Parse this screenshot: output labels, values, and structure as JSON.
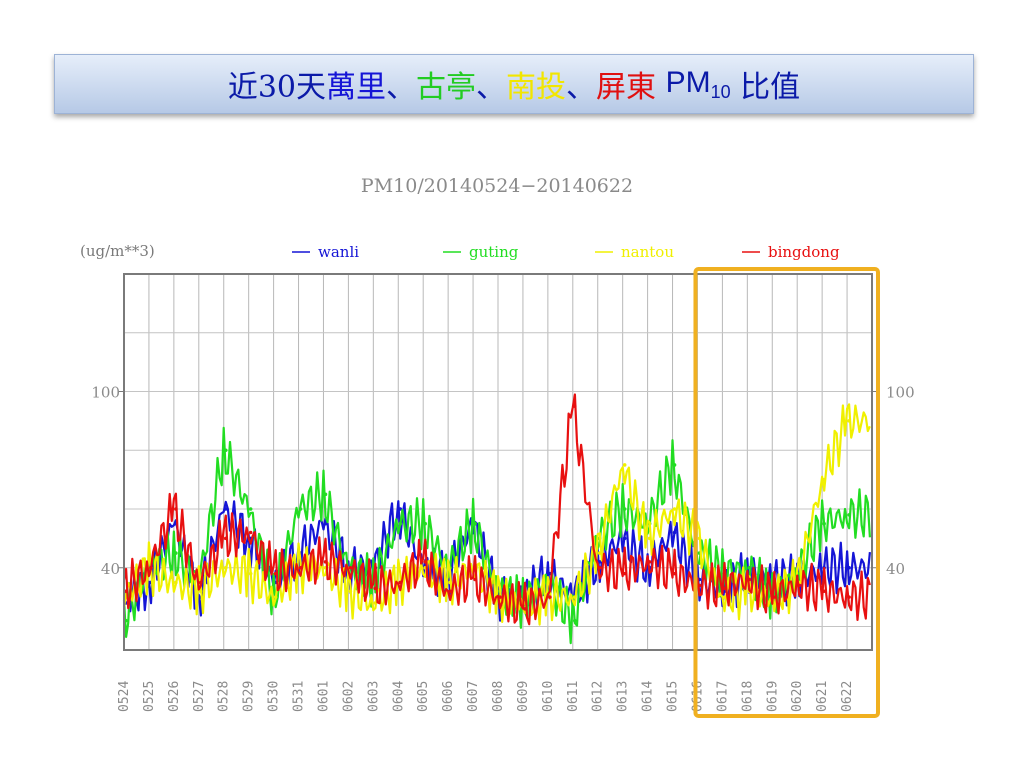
{
  "slide_title": {
    "prefix": "近30天",
    "sep1": "、",
    "sep2": "、",
    "sep3": "、",
    "station_names": [
      "萬里",
      "古亭",
      "南投",
      "屏東"
    ],
    "pm_label": "PM",
    "pm_sub": "10",
    "suffix": "比值"
  },
  "colors": {
    "wanli": "#1515d6",
    "guting": "#22dd22",
    "nantou": "#f0f000",
    "bingdong": "#e81010",
    "highlight_box": "#f0b020"
  },
  "chart_data": {
    "type": "line",
    "title": "PM10/20140524−20140622",
    "ylabel": "(ug/m**3)",
    "ylim": [
      12,
      140
    ],
    "yticks": [
      40,
      100
    ],
    "grid": true,
    "legend": "top",
    "categories": [
      "0524",
      "0525",
      "0526",
      "0527",
      "0528",
      "0529",
      "0530",
      "0531",
      "0601",
      "0602",
      "0603",
      "0604",
      "0605",
      "0606",
      "0607",
      "0608",
      "0609",
      "0610",
      "0611",
      "0612",
      "0613",
      "0614",
      "0615",
      "0616",
      "0617",
      "0618",
      "0619",
      "0620",
      "0621",
      "0622"
    ],
    "highlight_range": [
      "0616",
      "0622"
    ],
    "series": [
      {
        "name": "wanli",
        "key": "wanli",
        "values": [
          28,
          35,
          55,
          30,
          60,
          50,
          35,
          45,
          55,
          40,
          40,
          60,
          40,
          38,
          55,
          30,
          30,
          38,
          30,
          42,
          50,
          40,
          52,
          36,
          32,
          38,
          36,
          36,
          40,
          40
        ]
      },
      {
        "name": "guting",
        "key": "guting",
        "values": [
          22,
          40,
          45,
          35,
          80,
          60,
          30,
          60,
          65,
          40,
          35,
          55,
          55,
          40,
          55,
          32,
          28,
          35,
          22,
          50,
          60,
          55,
          75,
          45,
          38,
          40,
          30,
          38,
          55,
          58
        ]
      },
      {
        "name": "nantou",
        "key": "nantou",
        "values": [
          30,
          40,
          35,
          32,
          40,
          38,
          30,
          40,
          40,
          32,
          28,
          35,
          40,
          35,
          40,
          30,
          28,
          30,
          30,
          45,
          75,
          50,
          60,
          50,
          30,
          32,
          30,
          35,
          70,
          90
        ]
      },
      {
        "name": "bingdong",
        "key": "bingdong",
        "values": [
          32,
          40,
          60,
          35,
          50,
          52,
          38,
          40,
          42,
          40,
          33,
          35,
          42,
          32,
          36,
          30,
          26,
          30,
          95,
          40,
          38,
          42,
          38,
          34,
          33,
          36,
          30,
          34,
          32,
          30
        ]
      }
    ]
  }
}
